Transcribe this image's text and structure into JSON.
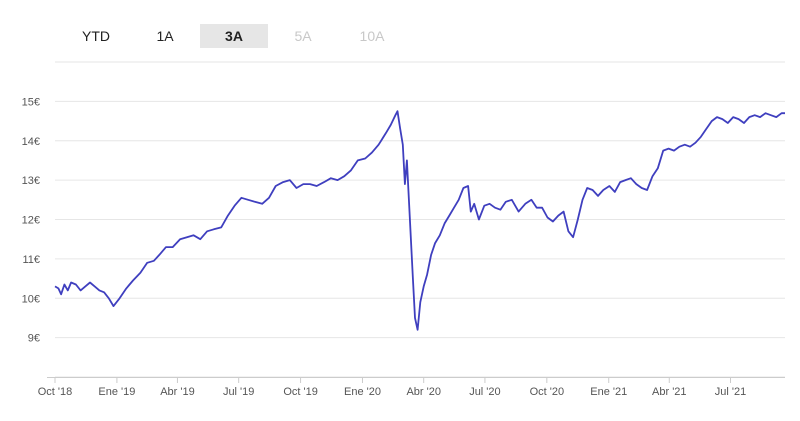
{
  "tabs": [
    {
      "label": "YTD",
      "state": "normal"
    },
    {
      "label": "1A",
      "state": "normal"
    },
    {
      "label": "3A",
      "state": "active"
    },
    {
      "label": "5A",
      "state": "disabled"
    },
    {
      "label": "10A",
      "state": "disabled"
    }
  ],
  "colors": {
    "line": "#3f3fbf",
    "grid": "#e6e6e6",
    "axis": "#cccccc",
    "tab_active_bg": "#e6e6e6"
  },
  "chart_data": {
    "type": "line",
    "title": "",
    "xlabel": "",
    "ylabel": "",
    "grid": "horizontal",
    "legend": "none",
    "ylim": [
      8,
      16
    ],
    "xlim": [
      "2018-10-01",
      "2021-09-20"
    ],
    "y_ticks": [
      {
        "value": 9,
        "label": "9€"
      },
      {
        "value": 10,
        "label": "10€"
      },
      {
        "value": 11,
        "label": "11€"
      },
      {
        "value": 12,
        "label": "12€"
      },
      {
        "value": 13,
        "label": "13€"
      },
      {
        "value": 14,
        "label": "14€"
      },
      {
        "value": 15,
        "label": "15€"
      }
    ],
    "x_ticks": [
      {
        "date": "2018-10-01",
        "label": "Oct '18"
      },
      {
        "date": "2019-01-01",
        "label": "Ene '19"
      },
      {
        "date": "2019-04-01",
        "label": "Abr '19"
      },
      {
        "date": "2019-07-01",
        "label": "Jul '19"
      },
      {
        "date": "2019-10-01",
        "label": "Oct '19"
      },
      {
        "date": "2020-01-01",
        "label": "Ene '20"
      },
      {
        "date": "2020-04-01",
        "label": "Abr '20"
      },
      {
        "date": "2020-07-01",
        "label": "Jul '20"
      },
      {
        "date": "2020-10-01",
        "label": "Oct '20"
      },
      {
        "date": "2021-01-01",
        "label": "Ene '21"
      },
      {
        "date": "2021-04-01",
        "label": "Abr '21"
      },
      {
        "date": "2021-07-01",
        "label": "Jul '21"
      }
    ],
    "series": [
      {
        "x": [
          "2018-10-01",
          "2018-10-06",
          "2018-10-10",
          "2018-10-15",
          "2018-10-20",
          "2018-10-25",
          "2018-11-01",
          "2018-11-08",
          "2018-11-15",
          "2018-11-22",
          "2018-11-29",
          "2018-12-06",
          "2018-12-13",
          "2018-12-20",
          "2018-12-27",
          "2019-01-05",
          "2019-01-15",
          "2019-01-25",
          "2019-02-05",
          "2019-02-15",
          "2019-02-25",
          "2019-03-05",
          "2019-03-15",
          "2019-03-25",
          "2019-04-05",
          "2019-04-15",
          "2019-04-25",
          "2019-05-05",
          "2019-05-15",
          "2019-05-25",
          "2019-06-05",
          "2019-06-15",
          "2019-06-25",
          "2019-07-05",
          "2019-07-15",
          "2019-07-25",
          "2019-08-05",
          "2019-08-15",
          "2019-08-25",
          "2019-09-05",
          "2019-09-15",
          "2019-09-25",
          "2019-10-05",
          "2019-10-15",
          "2019-10-25",
          "2019-11-05",
          "2019-11-15",
          "2019-11-25",
          "2019-12-05",
          "2019-12-15",
          "2019-12-25",
          "2020-01-05",
          "2020-01-15",
          "2020-01-25",
          "2020-02-05",
          "2020-02-12",
          "2020-02-19",
          "2020-02-22",
          "2020-02-26",
          "2020-03-01",
          "2020-03-04",
          "2020-03-07",
          "2020-03-10",
          "2020-03-13",
          "2020-03-16",
          "2020-03-19",
          "2020-03-23",
          "2020-03-27",
          "2020-04-01",
          "2020-04-06",
          "2020-04-12",
          "2020-04-18",
          "2020-04-25",
          "2020-05-02",
          "2020-05-09",
          "2020-05-16",
          "2020-05-23",
          "2020-05-30",
          "2020-06-06",
          "2020-06-10",
          "2020-06-15",
          "2020-06-22",
          "2020-06-30",
          "2020-07-08",
          "2020-07-16",
          "2020-07-24",
          "2020-08-01",
          "2020-08-10",
          "2020-08-20",
          "2020-08-30",
          "2020-09-08",
          "2020-09-16",
          "2020-09-24",
          "2020-10-02",
          "2020-10-10",
          "2020-10-18",
          "2020-10-26",
          "2020-11-02",
          "2020-11-09",
          "2020-11-16",
          "2020-11-23",
          "2020-11-30",
          "2020-12-08",
          "2020-12-16",
          "2020-12-24",
          "2021-01-02",
          "2021-01-10",
          "2021-01-18",
          "2021-01-26",
          "2021-02-03",
          "2021-02-11",
          "2021-02-19",
          "2021-02-27",
          "2021-03-07",
          "2021-03-15",
          "2021-03-23",
          "2021-03-31",
          "2021-04-08",
          "2021-04-16",
          "2021-04-24",
          "2021-05-02",
          "2021-05-10",
          "2021-05-18",
          "2021-05-26",
          "2021-06-03",
          "2021-06-11",
          "2021-06-19",
          "2021-06-27",
          "2021-07-05",
          "2021-07-13",
          "2021-07-21",
          "2021-07-29",
          "2021-08-06",
          "2021-08-14",
          "2021-08-22",
          "2021-08-30",
          "2021-09-07",
          "2021-09-15",
          "2021-09-20"
        ],
        "y": [
          10.3,
          10.25,
          10.1,
          10.35,
          10.2,
          10.4,
          10.35,
          10.2,
          10.3,
          10.4,
          10.3,
          10.2,
          10.15,
          10.0,
          9.8,
          10.0,
          10.25,
          10.45,
          10.65,
          10.9,
          10.95,
          11.1,
          11.3,
          11.3,
          11.5,
          11.55,
          11.6,
          11.5,
          11.7,
          11.75,
          11.8,
          12.1,
          12.35,
          12.55,
          12.5,
          12.45,
          12.4,
          12.55,
          12.85,
          12.95,
          13.0,
          12.8,
          12.9,
          12.9,
          12.85,
          12.95,
          13.05,
          13.0,
          13.1,
          13.25,
          13.5,
          13.55,
          13.7,
          13.9,
          14.2,
          14.4,
          14.65,
          14.75,
          14.3,
          13.9,
          12.9,
          13.5,
          12.5,
          11.5,
          10.5,
          9.5,
          9.2,
          9.9,
          10.3,
          10.6,
          11.1,
          11.4,
          11.6,
          11.9,
          12.1,
          12.3,
          12.5,
          12.8,
          12.85,
          12.2,
          12.4,
          12.0,
          12.35,
          12.4,
          12.3,
          12.25,
          12.45,
          12.5,
          12.2,
          12.4,
          12.5,
          12.3,
          12.3,
          12.05,
          11.95,
          12.1,
          12.2,
          11.7,
          11.55,
          12.0,
          12.5,
          12.8,
          12.75,
          12.6,
          12.75,
          12.85,
          12.7,
          12.95,
          13.0,
          13.05,
          12.9,
          12.8,
          12.75,
          13.1,
          13.3,
          13.75,
          13.8,
          13.75,
          13.85,
          13.9,
          13.85,
          13.95,
          14.1,
          14.3,
          14.5,
          14.6,
          14.55,
          14.45,
          14.6,
          14.55,
          14.45,
          14.6,
          14.65,
          14.6,
          14.7,
          14.65,
          14.6,
          14.7,
          14.7
        ]
      }
    ]
  }
}
